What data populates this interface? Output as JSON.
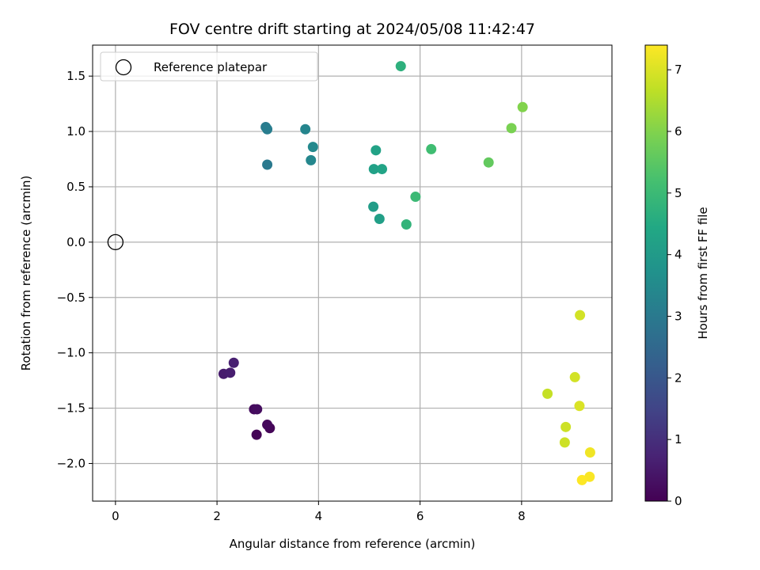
{
  "chart_data": {
    "type": "scatter",
    "title": "FOV centre drift starting at 2024/05/08 11:42:47",
    "xlabel": "Angular distance from reference (arcmin)",
    "ylabel": "Rotation from reference (arcmin)",
    "xlim": [
      -0.45,
      9.78
    ],
    "ylim": [
      -2.34,
      1.78
    ],
    "xticks": [
      0,
      2,
      4,
      6,
      8
    ],
    "yticks": [
      -2.0,
      -1.5,
      -1.0,
      -0.5,
      0.0,
      0.5,
      1.0,
      1.5
    ],
    "xtick_labels": [
      "0",
      "2",
      "4",
      "6",
      "8"
    ],
    "ytick_labels": [
      "−2.0",
      "−1.5",
      "−1.0",
      "−0.5",
      "0.0",
      "0.5",
      "1.0",
      "1.5"
    ],
    "grid": true,
    "legend": {
      "placement": "top-left",
      "entries": [
        "Reference platepar"
      ]
    },
    "reference_point": {
      "x": 0,
      "y": 0
    },
    "colorbar": {
      "label": "Hours from first FF file",
      "colormap": "viridis",
      "range": [
        0,
        7.4
      ],
      "ticks": [
        0,
        1,
        2,
        3,
        4,
        5,
        6,
        7
      ],
      "tick_labels": [
        "0",
        "1",
        "2",
        "3",
        "4",
        "5",
        "6",
        "7"
      ]
    },
    "points": [
      {
        "x": 2.78,
        "y": -1.74,
        "hours": 0.05
      },
      {
        "x": 3.04,
        "y": -1.68,
        "hours": 0.1
      },
      {
        "x": 2.99,
        "y": -1.65,
        "hours": 0.15
      },
      {
        "x": 2.73,
        "y": -1.51,
        "hours": 0.2
      },
      {
        "x": 2.79,
        "y": -1.51,
        "hours": 0.25
      },
      {
        "x": 2.13,
        "y": -1.19,
        "hours": 0.55
      },
      {
        "x": 2.26,
        "y": -1.18,
        "hours": 0.6
      },
      {
        "x": 2.33,
        "y": -1.09,
        "hours": 0.65
      },
      {
        "x": 2.99,
        "y": 0.7,
        "hours": 3.0
      },
      {
        "x": 2.96,
        "y": 1.04,
        "hours": 3.05
      },
      {
        "x": 2.99,
        "y": 1.02,
        "hours": 3.1
      },
      {
        "x": 3.74,
        "y": 1.02,
        "hours": 3.35
      },
      {
        "x": 3.85,
        "y": 0.74,
        "hours": 3.4
      },
      {
        "x": 3.89,
        "y": 0.86,
        "hours": 3.45
      },
      {
        "x": 5.08,
        "y": 0.32,
        "hours": 4.1
      },
      {
        "x": 5.2,
        "y": 0.21,
        "hours": 4.15
      },
      {
        "x": 5.09,
        "y": 0.66,
        "hours": 4.2
      },
      {
        "x": 5.13,
        "y": 0.83,
        "hours": 4.25
      },
      {
        "x": 5.25,
        "y": 0.66,
        "hours": 4.3
      },
      {
        "x": 5.62,
        "y": 1.59,
        "hours": 4.7
      },
      {
        "x": 5.73,
        "y": 0.16,
        "hours": 4.8
      },
      {
        "x": 5.91,
        "y": 0.41,
        "hours": 5.0
      },
      {
        "x": 6.22,
        "y": 0.84,
        "hours": 5.1
      },
      {
        "x": 7.35,
        "y": 0.72,
        "hours": 5.6
      },
      {
        "x": 7.8,
        "y": 1.03,
        "hours": 5.9
      },
      {
        "x": 8.02,
        "y": 1.22,
        "hours": 6.0
      },
      {
        "x": 8.51,
        "y": -1.37,
        "hours": 6.75
      },
      {
        "x": 8.85,
        "y": -1.81,
        "hours": 6.85
      },
      {
        "x": 8.87,
        "y": -1.67,
        "hours": 6.85
      },
      {
        "x": 9.05,
        "y": -1.22,
        "hours": 6.9
      },
      {
        "x": 9.15,
        "y": -0.66,
        "hours": 6.9
      },
      {
        "x": 9.14,
        "y": -1.48,
        "hours": 7.0
      },
      {
        "x": 9.35,
        "y": -1.9,
        "hours": 7.25
      },
      {
        "x": 9.34,
        "y": -2.12,
        "hours": 7.35
      },
      {
        "x": 9.19,
        "y": -2.15,
        "hours": 7.4
      }
    ]
  }
}
